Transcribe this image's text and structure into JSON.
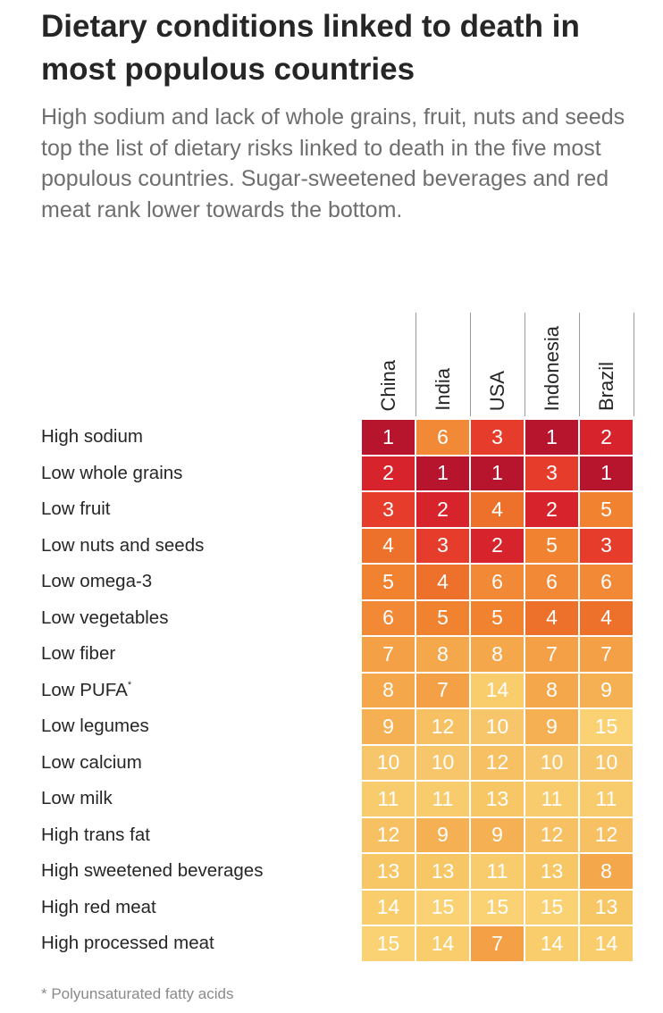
{
  "title": "Dietary conditions linked to death in most populous countries",
  "subtitle": "High sodium and lack of whole grains, fruit, nuts and seeds top the list of dietary risks linked to death in the five most populous countries. Sugar-sweetened beverages and red meat rank lower towards the bottom.",
  "footnote": "* Polyunsaturated fatty acids",
  "colors": {
    "rank_1": "#b7142d",
    "rank_2": "#d7232b",
    "rank_3": "#e63c2c",
    "rank_4": "#ee712b",
    "rank_5": "#f1822f",
    "rank_6": "#f28937",
    "rank_7": "#f3a046",
    "rank_8": "#f4a84b",
    "rank_9": "#f4b052",
    "rank_10": "#f7c56a",
    "rank_11": "#f8cb6d",
    "rank_12": "#f7c163",
    "rank_13": "#f8c765",
    "rank_14": "#f9cd6c",
    "rank_15": "#fad273"
  },
  "chart_data": {
    "type": "table",
    "title": "Dietary conditions linked to death in most populous countries",
    "value_meaning": "rank",
    "columns": [
      "China",
      "India",
      "USA",
      "Indonesia",
      "Brazil"
    ],
    "rows": [
      {
        "label": "High sodium",
        "values": [
          1,
          6,
          3,
          1,
          2
        ]
      },
      {
        "label": "Low whole grains",
        "values": [
          2,
          1,
          1,
          3,
          1
        ]
      },
      {
        "label": "Low fruit",
        "values": [
          3,
          2,
          4,
          2,
          5
        ]
      },
      {
        "label": "Low nuts and seeds",
        "values": [
          4,
          3,
          2,
          5,
          3
        ]
      },
      {
        "label": "Low omega-3",
        "values": [
          5,
          4,
          6,
          6,
          6
        ]
      },
      {
        "label": "Low vegetables",
        "values": [
          6,
          5,
          5,
          4,
          4
        ]
      },
      {
        "label": "Low fiber",
        "values": [
          7,
          8,
          8,
          7,
          7
        ]
      },
      {
        "label": "Low PUFA",
        "marker": "*",
        "values": [
          8,
          7,
          14,
          8,
          9
        ]
      },
      {
        "label": "Low legumes",
        "values": [
          9,
          12,
          10,
          9,
          15
        ]
      },
      {
        "label": "Low calcium",
        "values": [
          10,
          10,
          12,
          10,
          10
        ]
      },
      {
        "label": "Low milk",
        "values": [
          11,
          11,
          13,
          11,
          11
        ]
      },
      {
        "label": "High trans fat",
        "values": [
          12,
          9,
          9,
          12,
          12
        ]
      },
      {
        "label": "High sweetened beverages",
        "values": [
          13,
          13,
          11,
          13,
          8
        ]
      },
      {
        "label": "High red meat",
        "values": [
          14,
          15,
          15,
          15,
          13
        ]
      },
      {
        "label": "High processed meat",
        "values": [
          15,
          14,
          7,
          14,
          14
        ]
      }
    ]
  }
}
